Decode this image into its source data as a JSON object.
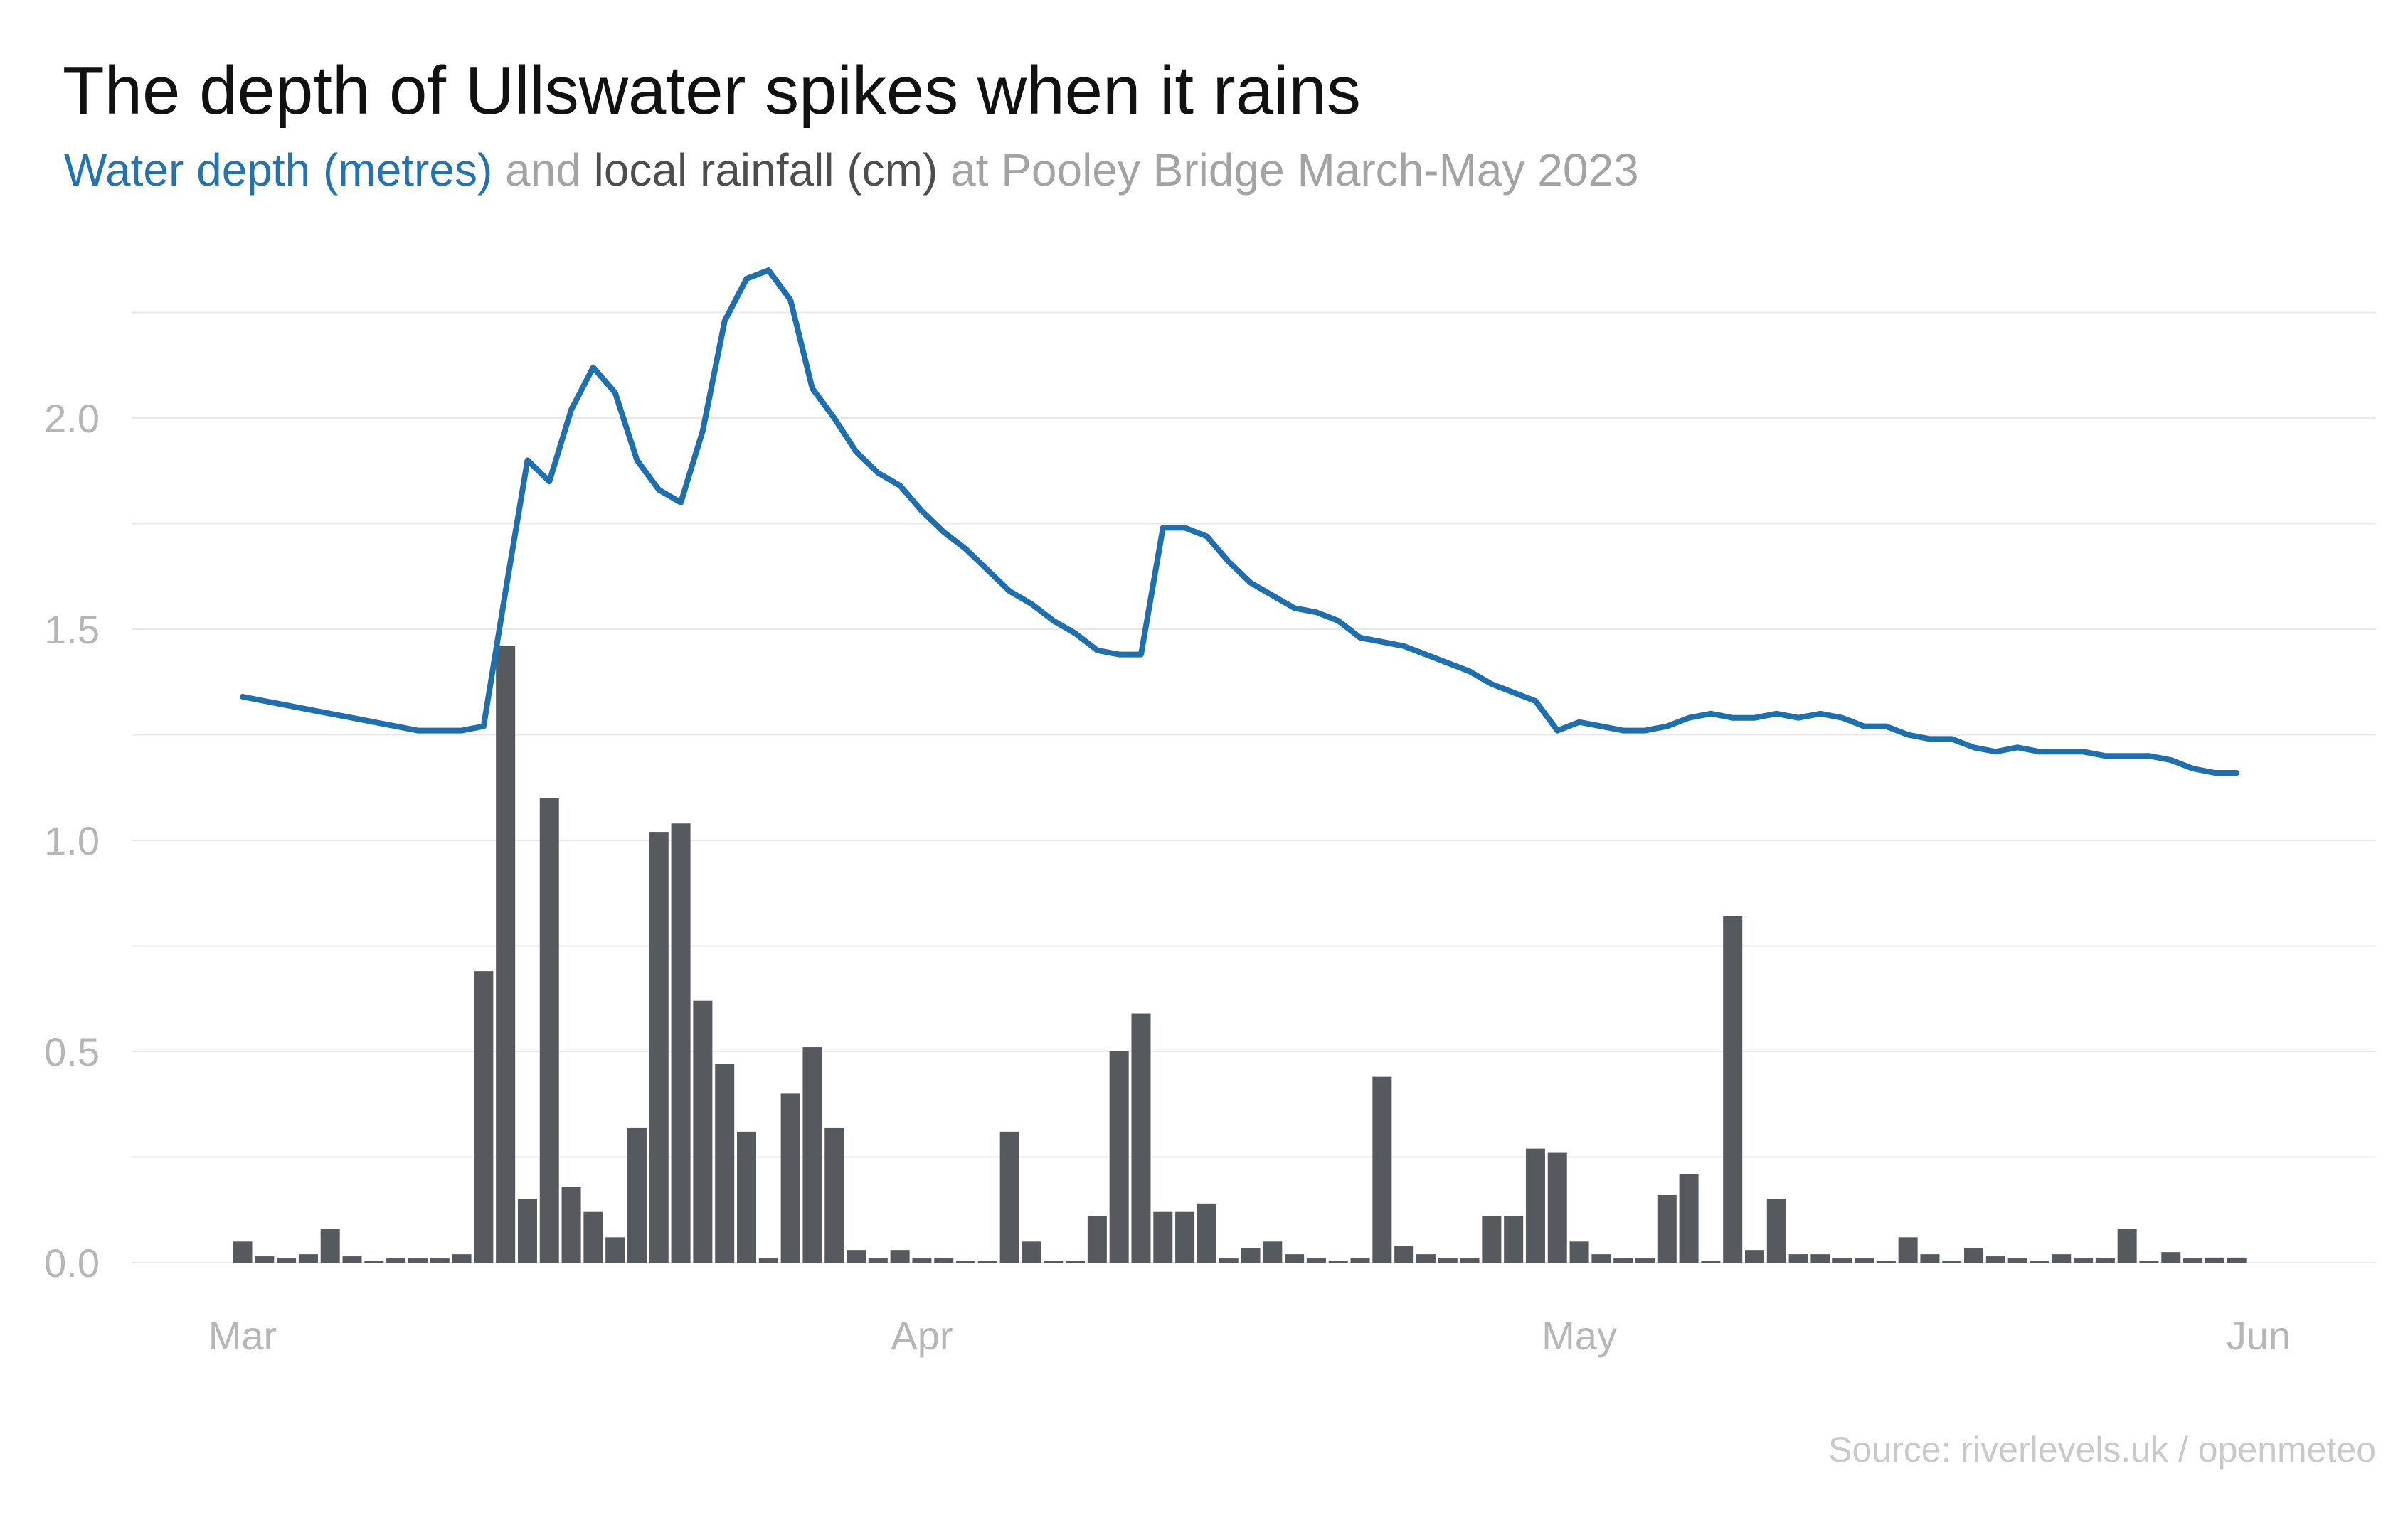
{
  "title": "The depth of Ullswater spikes when it rains",
  "subtitle": {
    "depth_label": "Water depth (metres)",
    "separator": "and",
    "rain_label": "local rainfall (cm)",
    "place_label": "at Pooley Bridge March-May 2023"
  },
  "source": "Source: riverlevels.uk / openmeteo",
  "colors": {
    "line_blue": "#1e6fae",
    "subtitle_blue": "#2173b4",
    "bar_gray": "#56595d",
    "gridline": "#e9e9e9",
    "axis_label": "#b6b6b6",
    "title_text": "#111111",
    "source_text": "#c9c9c9"
  },
  "chart_data": {
    "type": "line",
    "subtype": "combo-line-bar",
    "title": "The depth of Ullswater spikes when it rains",
    "x_start": "2023-03-01",
    "x_end": "2023-05-31",
    "frequency": "daily",
    "n_points": 92,
    "x_axis": {
      "tick_labels": [
        "Mar",
        "Apr",
        "May",
        "Jun"
      ],
      "tick_day_indices": [
        0,
        31,
        61,
        92
      ]
    },
    "y_axis": {
      "tick_labels": [
        "0.0",
        "0.5",
        "1.0",
        "1.5",
        "2.0"
      ],
      "tick_values": [
        0,
        0.5,
        1,
        1.5,
        2
      ],
      "gridline_step": 0.25,
      "gridline_max": 2.25,
      "ylim": [
        0,
        2.42
      ],
      "grid": "horizontal-only",
      "legend": "none (series named in subtitle)"
    },
    "series": [
      {
        "name": "Water depth (metres)",
        "type": "line",
        "color": "#1e6fae",
        "values": [
          1.34,
          1.33,
          1.32,
          1.31,
          1.3,
          1.29,
          1.28,
          1.27,
          1.26,
          1.26,
          1.26,
          1.27,
          1.59,
          1.9,
          1.85,
          2.02,
          2.12,
          2.06,
          1.9,
          1.83,
          1.8,
          1.97,
          2.23,
          2.33,
          2.35,
          2.28,
          2.07,
          2.0,
          1.92,
          1.87,
          1.84,
          1.78,
          1.73,
          1.69,
          1.64,
          1.59,
          1.56,
          1.52,
          1.49,
          1.45,
          1.44,
          1.44,
          1.74,
          1.74,
          1.72,
          1.66,
          1.61,
          1.58,
          1.55,
          1.54,
          1.52,
          1.48,
          1.47,
          1.46,
          1.44,
          1.42,
          1.4,
          1.37,
          1.35,
          1.33,
          1.26,
          1.28,
          1.27,
          1.26,
          1.26,
          1.27,
          1.29,
          1.3,
          1.29,
          1.29,
          1.3,
          1.29,
          1.3,
          1.29,
          1.27,
          1.27,
          1.25,
          1.24,
          1.24,
          1.22,
          1.21,
          1.22,
          1.21,
          1.21,
          1.21,
          1.2,
          1.2,
          1.2,
          1.19,
          1.17,
          1.16,
          1.16
        ]
      },
      {
        "name": "Local rainfall (cm)",
        "type": "bar",
        "color": "#56595d",
        "values": [
          0.05,
          0.015,
          0.01,
          0.02,
          0.08,
          0.015,
          0.005,
          0.01,
          0.01,
          0.01,
          0.02,
          0.69,
          1.46,
          0.15,
          1.1,
          0.18,
          0.12,
          0.06,
          0.32,
          1.02,
          1.04,
          0.62,
          0.47,
          0.31,
          0.01,
          0.4,
          0.51,
          0.32,
          0.03,
          0.01,
          0.03,
          0.01,
          0.01,
          0.005,
          0.005,
          0.31,
          0.05,
          0.005,
          0.005,
          0.11,
          0.5,
          0.59,
          0.12,
          0.12,
          0.14,
          0.01,
          0.035,
          0.05,
          0.02,
          0.01,
          0.005,
          0.01,
          0.44,
          0.04,
          0.02,
          0.01,
          0.01,
          0.11,
          0.11,
          0.27,
          0.26,
          0.05,
          0.02,
          0.01,
          0.01,
          0.16,
          0.21,
          0.005,
          0.82,
          0.03,
          0.15,
          0.02,
          0.02,
          0.01,
          0.01,
          0.005,
          0.06,
          0.02,
          0.005,
          0.035,
          0.015,
          0.01,
          0.005,
          0.02,
          0.01,
          0.01,
          0.08,
          0.005,
          0.025,
          0.01,
          0.012,
          0.012
        ]
      }
    ]
  }
}
